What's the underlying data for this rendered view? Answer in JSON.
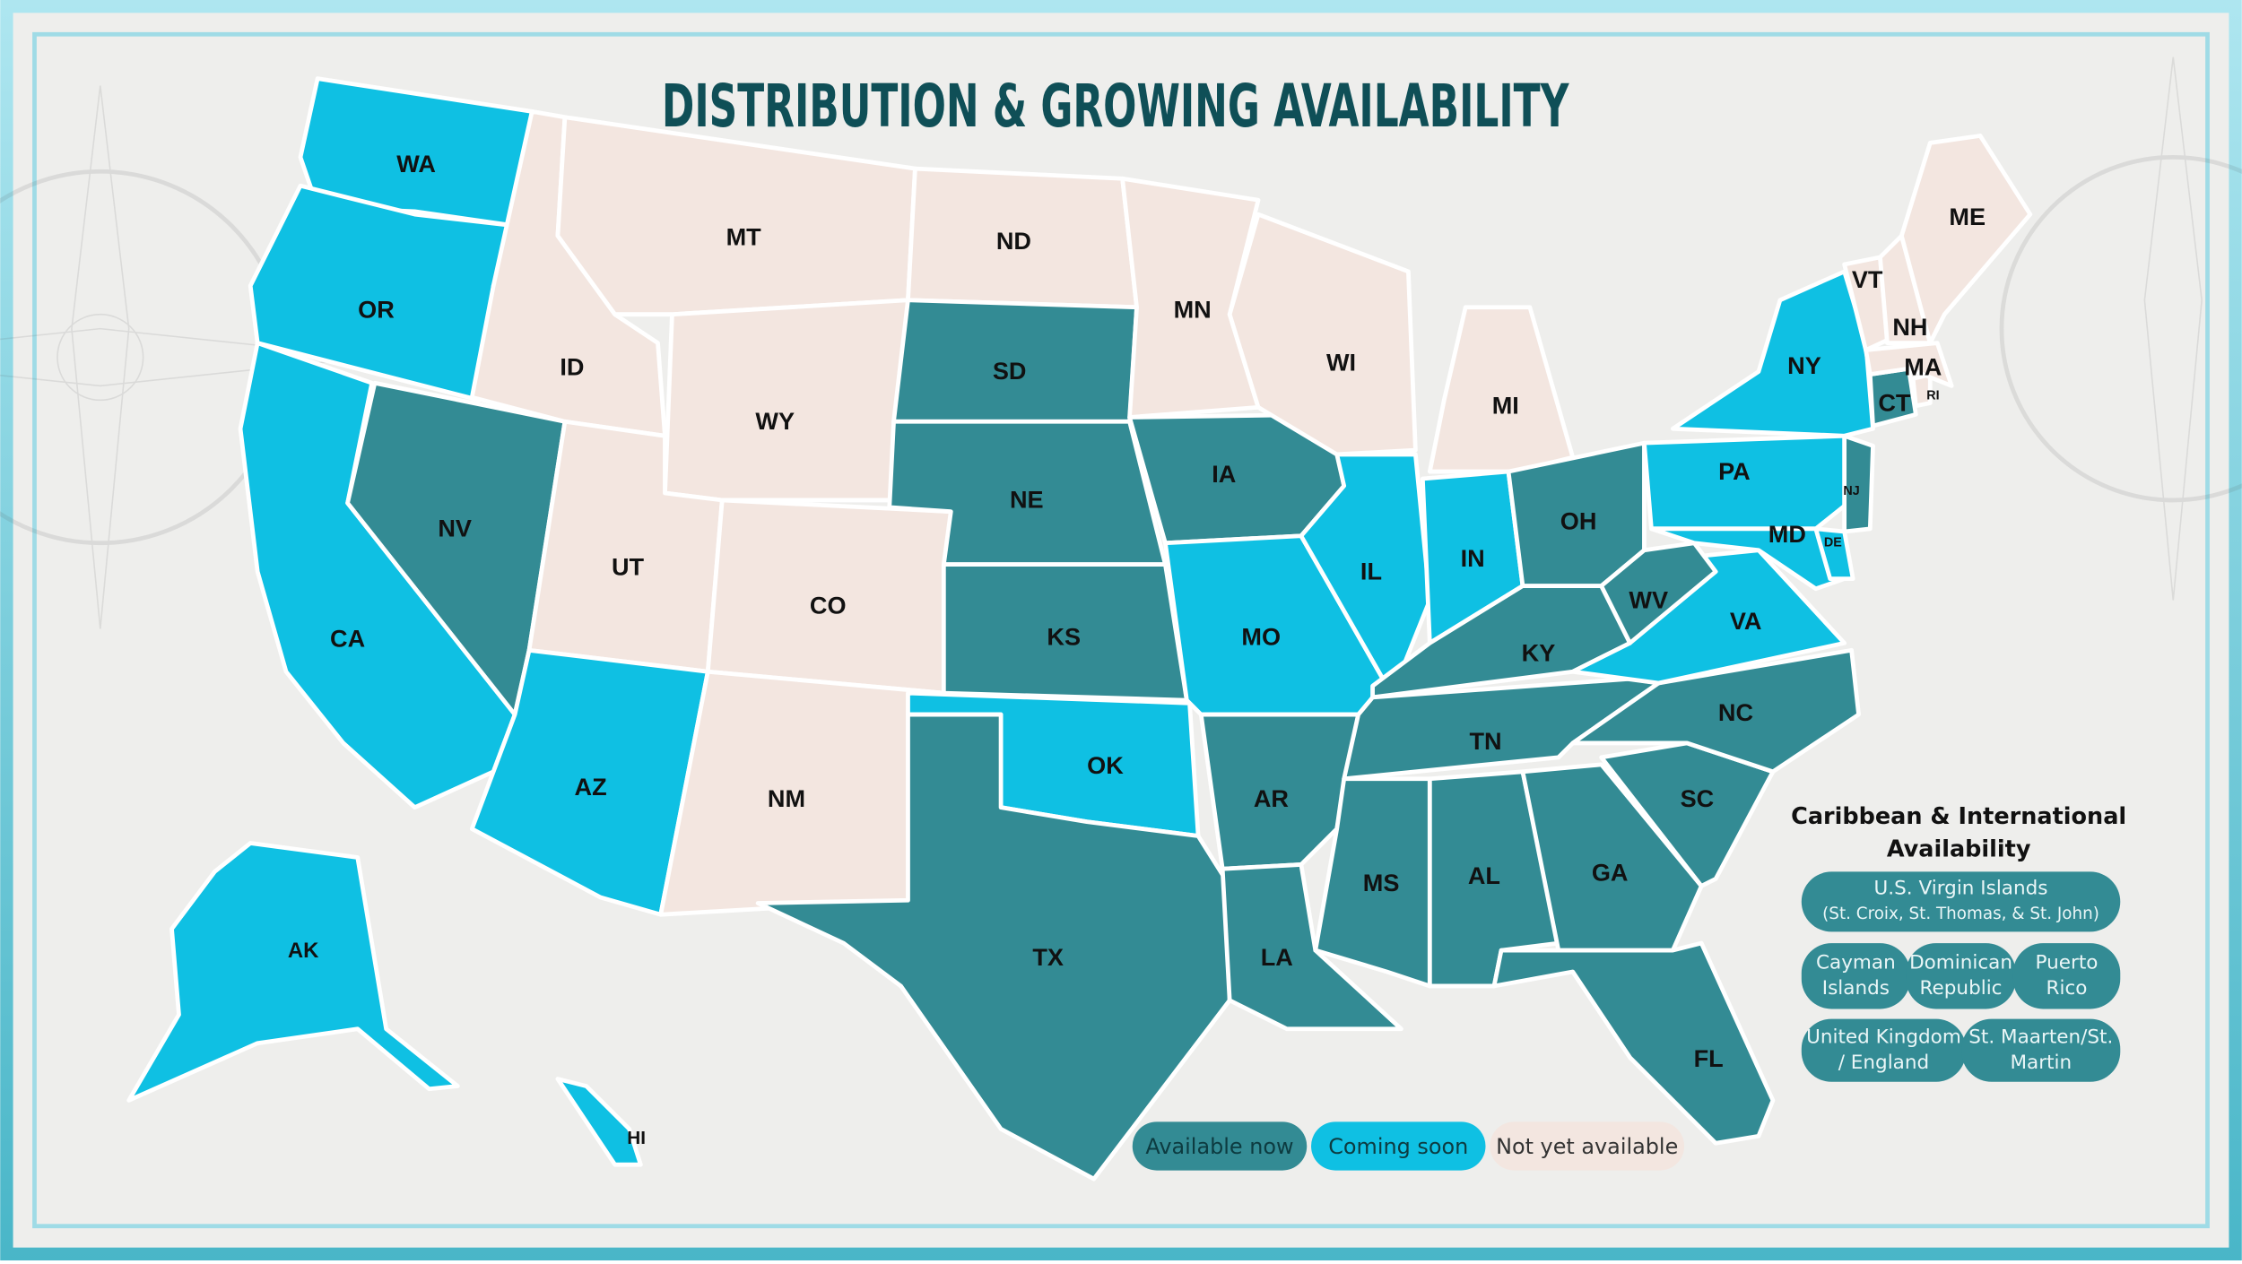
{
  "title": "DISTRIBUTION & GROWING AVAILABILITY",
  "legend": [
    {
      "label": "Available now",
      "color": "#338b94"
    },
    {
      "label": "Coming soon",
      "color": "#0fc0e3"
    },
    {
      "label": "Not yet available",
      "color": "#f3e6e0"
    }
  ],
  "states": [
    {
      "code": "WA",
      "status": 1
    },
    {
      "code": "OR",
      "status": 1
    },
    {
      "code": "CA",
      "status": 1
    },
    {
      "code": "NV",
      "status": 0
    },
    {
      "code": "ID",
      "status": 2
    },
    {
      "code": "MT",
      "status": 2
    },
    {
      "code": "WY",
      "status": 2
    },
    {
      "code": "UT",
      "status": 2
    },
    {
      "code": "CO",
      "status": 2
    },
    {
      "code": "AZ",
      "status": 1
    },
    {
      "code": "NM",
      "status": 2
    },
    {
      "code": "ND",
      "status": 2
    },
    {
      "code": "SD",
      "status": 0
    },
    {
      "code": "NE",
      "status": 0
    },
    {
      "code": "KS",
      "status": 0
    },
    {
      "code": "OK",
      "status": 1
    },
    {
      "code": "TX",
      "status": 0
    },
    {
      "code": "MN",
      "status": 2
    },
    {
      "code": "IA",
      "status": 0
    },
    {
      "code": "MO",
      "status": 1
    },
    {
      "code": "AR",
      "status": 0
    },
    {
      "code": "LA",
      "status": 0
    },
    {
      "code": "WI",
      "status": 2
    },
    {
      "code": "IL",
      "status": 1
    },
    {
      "code": "MI",
      "status": 2
    },
    {
      "code": "IN",
      "status": 1
    },
    {
      "code": "OH",
      "status": 0
    },
    {
      "code": "KY",
      "status": 0
    },
    {
      "code": "TN",
      "status": 0
    },
    {
      "code": "MS",
      "status": 0
    },
    {
      "code": "AL",
      "status": 0
    },
    {
      "code": "GA",
      "status": 0
    },
    {
      "code": "FL",
      "status": 0
    },
    {
      "code": "SC",
      "status": 0
    },
    {
      "code": "NC",
      "status": 0
    },
    {
      "code": "VA",
      "status": 1
    },
    {
      "code": "WV",
      "status": 0
    },
    {
      "code": "PA",
      "status": 1
    },
    {
      "code": "MD",
      "status": 1
    },
    {
      "code": "DE",
      "status": 1
    },
    {
      "code": "NJ",
      "status": 0
    },
    {
      "code": "NY",
      "status": 1
    },
    {
      "code": "CT",
      "status": 0
    },
    {
      "code": "RI",
      "status": 2
    },
    {
      "code": "MA",
      "status": 2
    },
    {
      "code": "VT",
      "status": 2
    },
    {
      "code": "NH",
      "status": 2
    },
    {
      "code": "ME",
      "status": 2
    },
    {
      "code": "AK",
      "status": 1
    },
    {
      "code": "HI",
      "status": 1
    }
  ],
  "international": {
    "title_lines": [
      "Caribbean & International",
      "Availability"
    ],
    "places": [
      {
        "lines": [
          "U.S. Virgin Islands",
          "(St. Croix, St. Thomas, & St. John)"
        ]
      },
      {
        "lines": [
          "Cayman",
          "Islands"
        ]
      },
      {
        "lines": [
          "Dominican",
          "Republic"
        ]
      },
      {
        "lines": [
          "Puerto",
          "Rico"
        ]
      },
      {
        "lines": [
          "United Kingdom",
          "/ England"
        ]
      },
      {
        "lines": [
          "St. Maarten/St.",
          "Martin"
        ]
      }
    ]
  }
}
